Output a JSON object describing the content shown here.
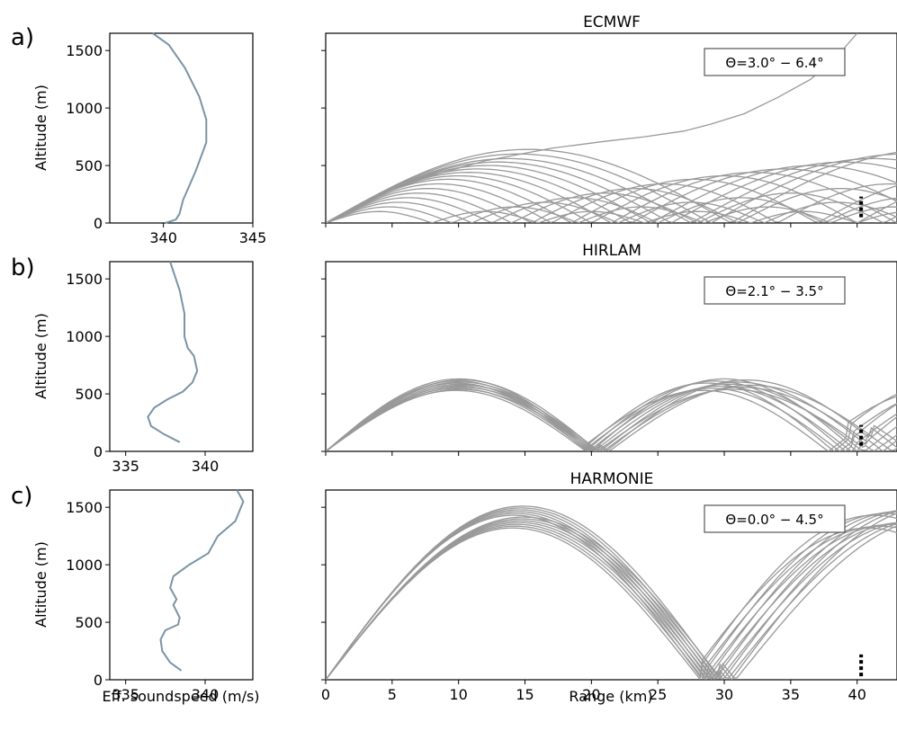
{
  "chart_data": [
    {
      "panel": "a",
      "panel_label": "a)",
      "left": {
        "type": "line",
        "ylabel": "Altitude (m)",
        "xlabel": "",
        "xlim": [
          337,
          345
        ],
        "ylim": [
          0,
          1650
        ],
        "xticks": [
          340,
          345
        ],
        "yticks": [
          0,
          500,
          1000,
          1500
        ],
        "profile": {
          "x": [
            340.1,
            340.7,
            340.9,
            341.1,
            341.8,
            342.4,
            342.4,
            342.0,
            341.2,
            340.3,
            339.4
          ],
          "y": [
            0,
            30,
            80,
            200,
            450,
            700,
            900,
            1100,
            1350,
            1550,
            1650
          ]
        }
      },
      "right": {
        "type": "line",
        "title": "ECMWF",
        "annotation": "Θ=3.0° − 6.4°",
        "xlabel": "",
        "xlim": [
          0,
          43
        ],
        "ylim": [
          0,
          1650
        ],
        "xticks": [
          0,
          5,
          10,
          15,
          20,
          25,
          30,
          35,
          40
        ],
        "receiver": {
          "x": 40.3,
          "y": [
            50,
            230
          ]
        },
        "rays": [
          {
            "range": 8.0,
            "apex": 100
          },
          {
            "range": 9.5,
            "apex": 140
          },
          {
            "range": 11.0,
            "apex": 180
          },
          {
            "range": 12.5,
            "apex": 220
          },
          {
            "range": 14.0,
            "apex": 260
          },
          {
            "range": 15.5,
            "apex": 300
          },
          {
            "range": 17.0,
            "apex": 340
          },
          {
            "range": 18.5,
            "apex": 380
          },
          {
            "range": 20.0,
            "apex": 410
          },
          {
            "range": 21.5,
            "apex": 440
          },
          {
            "range": 23.0,
            "apex": 470
          },
          {
            "range": 24.5,
            "apex": 500
          },
          {
            "range": 26.0,
            "apex": 530
          },
          {
            "range": 27.5,
            "apex": 560
          },
          {
            "range": 29.0,
            "apex": 600
          },
          {
            "range": 30.5,
            "apex": 640
          }
        ],
        "escape_ray": {
          "x": [
            0,
            6,
            12,
            17,
            21,
            24,
            27,
            29,
            31.5,
            34,
            36.5,
            38.5,
            40
          ],
          "y": [
            0,
            350,
            540,
            650,
            710,
            750,
            800,
            860,
            950,
            1090,
            1250,
            1450,
            1650
          ]
        }
      }
    },
    {
      "panel": "b",
      "panel_label": "b)",
      "left": {
        "type": "line",
        "ylabel": "Altitude (m)",
        "xlabel": "",
        "xlim": [
          334,
          343
        ],
        "ylim": [
          0,
          1650
        ],
        "xticks": [
          335,
          340
        ],
        "yticks": [
          0,
          500,
          1000,
          1500
        ],
        "profile": {
          "x": [
            338.4,
            337.4,
            336.6,
            336.4,
            336.8,
            337.6,
            338.6,
            339.2,
            339.5,
            339.3,
            338.9,
            338.7,
            338.7,
            338.4,
            337.8
          ],
          "y": [
            80,
            150,
            220,
            300,
            380,
            450,
            520,
            600,
            700,
            830,
            900,
            1000,
            1200,
            1400,
            1650
          ]
        }
      },
      "right": {
        "type": "line",
        "title": "HIRLAM",
        "annotation": "Θ=2.1° − 3.5°",
        "xlabel": "",
        "xlim": [
          0,
          43
        ],
        "ylim": [
          0,
          1650
        ],
        "xticks": [
          0,
          5,
          10,
          15,
          20,
          25,
          30,
          35,
          40
        ],
        "receiver": {
          "x": 40.3,
          "y": [
            50,
            230
          ]
        },
        "ray_family": {
          "count": 12,
          "first_bounce_km": [
            19.6,
            20.6
          ],
          "apex_m": [
            530,
            630
          ]
        }
      }
    },
    {
      "panel": "c",
      "panel_label": "c)",
      "left": {
        "type": "line",
        "ylabel": "Altitude (m)",
        "xlabel": "Eff. soundspeed (m/s)",
        "xlim": [
          334,
          343
        ],
        "ylim": [
          0,
          1650
        ],
        "xticks": [
          335,
          340
        ],
        "yticks": [
          0,
          500,
          1000,
          1500
        ],
        "profile": {
          "x": [
            338.5,
            337.8,
            337.3,
            337.2,
            337.5,
            338.3,
            338.4,
            338.0,
            338.2,
            337.8,
            338.0,
            339.0,
            340.2,
            340.8,
            341.9,
            342.4,
            342.0
          ],
          "y": [
            80,
            150,
            250,
            350,
            430,
            480,
            540,
            650,
            700,
            800,
            900,
            1000,
            1100,
            1250,
            1380,
            1550,
            1650
          ]
        }
      },
      "right": {
        "type": "line",
        "title": "HARMONIE",
        "annotation": "Θ=0.0° − 4.5°",
        "xlabel": "Range (km)",
        "xlim": [
          0,
          43
        ],
        "ylim": [
          0,
          1650
        ],
        "xticks": [
          0,
          5,
          10,
          15,
          20,
          25,
          30,
          35,
          40
        ],
        "xticklabels": [
          "0",
          "5",
          "10",
          "15",
          "20",
          "25",
          "30",
          "35",
          "40"
        ],
        "receiver": {
          "x": 40.3,
          "y": [
            30,
            220
          ]
        },
        "ray_family": {
          "count": 13,
          "first_bounce_km": [
            28.2,
            29.8
          ],
          "apex_m": [
            1320,
            1510
          ]
        }
      }
    }
  ]
}
